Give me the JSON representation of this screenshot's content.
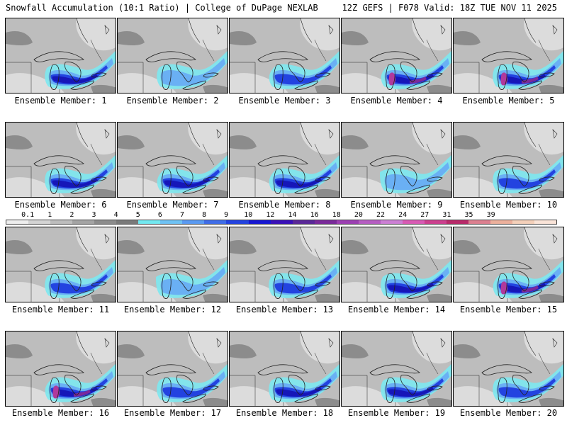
{
  "header": {
    "title": "Snowfall Accumulation (10:1 Ratio) | College of DuPage NEXLAB",
    "run_info": "12Z GEFS | F078 Valid: 18Z TUE NOV 11 2025"
  },
  "legend": {
    "labels": [
      "0.1",
      "1",
      "2",
      "3",
      "4",
      "5",
      "6",
      "7",
      "8",
      "9",
      "10",
      "12",
      "14",
      "16",
      "18",
      "20",
      "22",
      "24",
      "27",
      "31",
      "35",
      "39"
    ],
    "colors": [
      "#eeeeee",
      "#d4d4d4",
      "#bdbdbd",
      "#a4a4a4",
      "#8c8c8c",
      "#7a7a7a",
      "#72e8f0",
      "#6fc2f4",
      "#5a9af2",
      "#3f6de8",
      "#2343e0",
      "#1717d2",
      "#3a10b8",
      "#5a2898",
      "#7a2a9a",
      "#9c3fb2",
      "#b65dc2",
      "#cc7fd4",
      "#d85ab4",
      "#cc3f8e",
      "#b82a6a",
      "#dc8090",
      "#ecb09c",
      "#f4d0ba",
      "#fae4d8"
    ]
  },
  "colors": {
    "land_gray": "#bdbdbd",
    "light_gray": "#dcdcdc",
    "dark_gray": "#8c8c8c",
    "cyan": "#7ce8f0",
    "lt_blue": "#6ab0f4",
    "blue": "#2343e0",
    "dk_blue": "#1616b8",
    "purple": "#7a2a9a",
    "magenta": "#b0399c",
    "coast": "#222222"
  },
  "members": [
    {
      "label": "Ensemble Member: 1",
      "intensity": 3,
      "band": 2
    },
    {
      "label": "Ensemble Member: 2",
      "intensity": 1,
      "band": 2
    },
    {
      "label": "Ensemble Member: 3",
      "intensity": 2,
      "band": 3
    },
    {
      "label": "Ensemble Member: 4",
      "intensity": 4,
      "band": 3
    },
    {
      "label": "Ensemble Member: 5",
      "intensity": 4,
      "band": 2
    },
    {
      "label": "Ensemble Member: 6",
      "intensity": 3,
      "band": 2
    },
    {
      "label": "Ensemble Member: 7",
      "intensity": 3,
      "band": 3
    },
    {
      "label": "Ensemble Member: 8",
      "intensity": 3,
      "band": 3
    },
    {
      "label": "Ensemble Member: 9",
      "intensity": 1,
      "band": 1
    },
    {
      "label": "Ensemble Member: 10",
      "intensity": 2,
      "band": 2
    },
    {
      "label": "Ensemble Member: 11",
      "intensity": 2,
      "band": 2
    },
    {
      "label": "Ensemble Member: 12",
      "intensity": 1,
      "band": 1
    },
    {
      "label": "Ensemble Member: 13",
      "intensity": 2,
      "band": 2
    },
    {
      "label": "Ensemble Member: 14",
      "intensity": 3,
      "band": 2
    },
    {
      "label": "Ensemble Member: 15",
      "intensity": 4,
      "band": 3
    },
    {
      "label": "Ensemble Member: 16",
      "intensity": 4,
      "band": 3
    },
    {
      "label": "Ensemble Member: 17",
      "intensity": 2,
      "band": 2
    },
    {
      "label": "Ensemble Member: 18",
      "intensity": 3,
      "band": 2
    },
    {
      "label": "Ensemble Member: 19",
      "intensity": 3,
      "band": 2
    },
    {
      "label": "Ensemble Member: 20",
      "intensity": 2,
      "band": 2
    }
  ]
}
